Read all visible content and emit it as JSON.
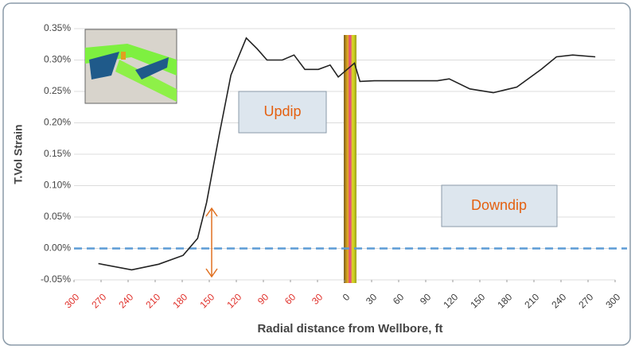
{
  "chart_data": {
    "type": "line",
    "y_label": "T.Vol Strain",
    "x_label": "Radial distance from Wellbore, ft",
    "annotations": [
      "Updip",
      "Downdip"
    ],
    "x": [
      -273,
      -236,
      -206,
      -179,
      -163,
      -153,
      -139,
      -126,
      -109,
      -97,
      -86,
      -69,
      -56,
      -44,
      -29,
      -16,
      -7,
      11,
      17,
      33,
      103,
      116,
      139,
      165,
      191,
      218,
      235,
      253,
      278
    ],
    "values": [
      -0.024,
      -0.034,
      -0.025,
      -0.011,
      0.016,
      0.073,
      0.181,
      0.276,
      0.335,
      0.318,
      0.3,
      0.3,
      0.308,
      0.285,
      0.285,
      0.292,
      0.273,
      0.295,
      0.266,
      0.267,
      0.267,
      0.27,
      0.254,
      0.248,
      0.257,
      0.285,
      0.305,
      0.308,
      0.305
    ],
    "color": "#222222",
    "xlim": [
      -300,
      300
    ],
    "xticks": [
      {
        "value": -300,
        "label": "300"
      },
      {
        "value": -270,
        "label": "270"
      },
      {
        "value": -240,
        "label": "240"
      },
      {
        "value": -210,
        "label": "210"
      },
      {
        "value": -180,
        "label": "180"
      },
      {
        "value": -150,
        "label": "150"
      },
      {
        "value": -120,
        "label": "120"
      },
      {
        "value": -90,
        "label": "90"
      },
      {
        "value": -60,
        "label": "60"
      },
      {
        "value": -30,
        "label": "30"
      },
      0,
      30,
      60,
      90,
      120,
      150,
      180,
      210,
      240,
      270,
      300
    ],
    "xtick_colors": {
      "negative": "#e0302a",
      "other": "#3a3a3a"
    },
    "ylim": [
      -0.05,
      0.35
    ],
    "yticks": [
      {
        "value": -0.05,
        "label": "-0.05%"
      },
      {
        "value": 0,
        "label": "0.00%"
      },
      {
        "value": 0.05,
        "label": "0.05%"
      },
      {
        "value": 0.1,
        "label": "0.10%"
      },
      {
        "value": 0.15,
        "label": "0.15%"
      },
      {
        "value": 0.2,
        "label": "0.20%"
      },
      {
        "value": 0.25,
        "label": "0.25%"
      },
      {
        "value": 0.3,
        "label": "0.30%"
      },
      {
        "value": 0.35,
        "label": "0.35%"
      }
    ],
    "grid": true,
    "reference_line": {
      "value": 0,
      "color": "#5b9bd5"
    }
  }
}
